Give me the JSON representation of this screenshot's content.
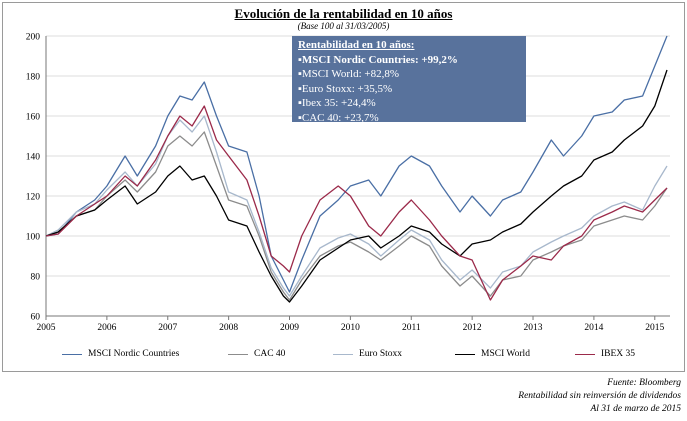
{
  "chart_data": {
    "type": "line",
    "title": "Evolución de la rentabilidad en 10 años",
    "subtitle": "(Base 100 al 31/03/2005)",
    "ylim": [
      60,
      200
    ],
    "yticks": [
      60,
      80,
      100,
      120,
      140,
      160,
      180,
      200
    ],
    "xlim": [
      2005,
      2015.25
    ],
    "xticks": [
      "2005",
      "2006",
      "2007",
      "2008",
      "2009",
      "2010",
      "2011",
      "2012",
      "2013",
      "2014",
      "2015"
    ],
    "series": [
      {
        "name": "MSCI Nordic Countries",
        "color": "#4a6fa5",
        "x": [
          2005,
          2005.2,
          2005.5,
          2005.8,
          2006,
          2006.3,
          2006.5,
          2006.8,
          2007,
          2007.2,
          2007.4,
          2007.6,
          2007.8,
          2008,
          2008.3,
          2008.5,
          2008.7,
          2008.9,
          2009,
          2009.2,
          2009.5,
          2009.8,
          2010,
          2010.3,
          2010.5,
          2010.8,
          2011,
          2011.3,
          2011.5,
          2011.8,
          2012,
          2012.3,
          2012.5,
          2012.8,
          2013,
          2013.3,
          2013.5,
          2013.8,
          2014,
          2014.3,
          2014.5,
          2014.8,
          2015,
          2015.2
        ],
        "values": [
          100,
          101,
          112,
          118,
          125,
          140,
          130,
          145,
          160,
          170,
          168,
          177,
          160,
          145,
          142,
          120,
          90,
          78,
          72,
          88,
          110,
          118,
          125,
          128,
          120,
          135,
          140,
          135,
          125,
          112,
          120,
          110,
          118,
          122,
          132,
          148,
          140,
          150,
          160,
          162,
          168,
          170,
          185,
          200
        ]
      },
      {
        "name": "CAC 40",
        "color": "#8c8c8c",
        "x": [
          2005,
          2005.2,
          2005.5,
          2005.8,
          2006,
          2006.3,
          2006.5,
          2006.8,
          2007,
          2007.2,
          2007.4,
          2007.6,
          2007.8,
          2008,
          2008.3,
          2008.5,
          2008.7,
          2008.9,
          2009,
          2009.2,
          2009.5,
          2009.8,
          2010,
          2010.3,
          2010.5,
          2010.8,
          2011,
          2011.3,
          2011.5,
          2011.8,
          2012,
          2012.3,
          2012.5,
          2012.8,
          2013,
          2013.3,
          2013.5,
          2013.8,
          2014,
          2014.3,
          2014.5,
          2014.8,
          2015,
          2015.2
        ],
        "values": [
          100,
          102,
          110,
          113,
          120,
          128,
          122,
          132,
          145,
          150,
          145,
          152,
          135,
          118,
          115,
          100,
          82,
          72,
          68,
          78,
          90,
          95,
          97,
          92,
          88,
          95,
          100,
          95,
          85,
          75,
          80,
          70,
          78,
          80,
          88,
          92,
          95,
          98,
          105,
          108,
          110,
          108,
          115,
          124
        ]
      },
      {
        "name": "Euro Stoxx",
        "color": "#a8b8cc",
        "x": [
          2005,
          2005.2,
          2005.5,
          2005.8,
          2006,
          2006.3,
          2006.5,
          2006.8,
          2007,
          2007.2,
          2007.4,
          2007.6,
          2007.8,
          2008,
          2008.3,
          2008.5,
          2008.7,
          2008.9,
          2009,
          2009.2,
          2009.5,
          2009.8,
          2010,
          2010.3,
          2010.5,
          2010.8,
          2011,
          2011.3,
          2011.5,
          2011.8,
          2012,
          2012.3,
          2012.5,
          2012.8,
          2013,
          2013.3,
          2013.5,
          2013.8,
          2014,
          2014.3,
          2014.5,
          2014.8,
          2015,
          2015.2
        ],
        "values": [
          100,
          103,
          112,
          116,
          123,
          132,
          125,
          136,
          150,
          158,
          152,
          160,
          142,
          122,
          118,
          102,
          84,
          74,
          70,
          80,
          94,
          99,
          101,
          96,
          90,
          98,
          103,
          98,
          88,
          78,
          83,
          74,
          82,
          85,
          92,
          97,
          100,
          104,
          110,
          115,
          117,
          113,
          125,
          135
        ]
      },
      {
        "name": "MSCI World",
        "color": "#000000",
        "x": [
          2005,
          2005.2,
          2005.5,
          2005.8,
          2006,
          2006.3,
          2006.5,
          2006.8,
          2007,
          2007.2,
          2007.4,
          2007.6,
          2007.8,
          2008,
          2008.3,
          2008.5,
          2008.7,
          2008.9,
          2009,
          2009.2,
          2009.5,
          2009.8,
          2010,
          2010.3,
          2010.5,
          2010.8,
          2011,
          2011.3,
          2011.5,
          2011.8,
          2012,
          2012.3,
          2012.5,
          2012.8,
          2013,
          2013.3,
          2013.5,
          2013.8,
          2014,
          2014.3,
          2014.5,
          2014.8,
          2015,
          2015.2
        ],
        "values": [
          100,
          102,
          110,
          113,
          118,
          125,
          116,
          122,
          130,
          135,
          128,
          130,
          120,
          108,
          105,
          92,
          80,
          70,
          67,
          75,
          88,
          94,
          98,
          100,
          94,
          100,
          105,
          102,
          96,
          90,
          96,
          98,
          102,
          106,
          112,
          120,
          125,
          130,
          138,
          142,
          148,
          155,
          165,
          183
        ]
      },
      {
        "name": "IBEX 35",
        "color": "#9b2a4a",
        "x": [
          2005,
          2005.2,
          2005.5,
          2005.8,
          2006,
          2006.3,
          2006.5,
          2006.8,
          2007,
          2007.2,
          2007.4,
          2007.6,
          2007.8,
          2008,
          2008.3,
          2008.5,
          2008.7,
          2008.9,
          2009,
          2009.2,
          2009.5,
          2009.8,
          2010,
          2010.3,
          2010.5,
          2010.8,
          2011,
          2011.3,
          2011.5,
          2011.8,
          2012,
          2012.3,
          2012.5,
          2012.8,
          2013,
          2013.3,
          2013.5,
          2013.8,
          2014,
          2014.3,
          2014.5,
          2014.8,
          2015,
          2015.2
        ],
        "values": [
          100,
          101,
          110,
          116,
          120,
          130,
          125,
          138,
          150,
          160,
          155,
          165,
          148,
          140,
          128,
          110,
          90,
          85,
          82,
          100,
          118,
          125,
          120,
          105,
          100,
          112,
          118,
          108,
          100,
          90,
          88,
          68,
          78,
          85,
          90,
          88,
          95,
          100,
          108,
          112,
          115,
          112,
          118,
          124
        ]
      }
    ]
  },
  "info_box": {
    "heading": "Rentabilidad en 10 años",
    "items": [
      "MSCI Nordic Countries: +99,2%",
      "MSCI World: +82,8%",
      "Euro Stoxx: +35,5%",
      "Ibex 35: +24,4%",
      "CAC 40: +23,7%"
    ]
  },
  "footer": {
    "source": "Fuente: Bloomberg",
    "note": "Rentabilidad sin reinversión de dividendos",
    "date": "Al 31 de marzo de 2015"
  }
}
